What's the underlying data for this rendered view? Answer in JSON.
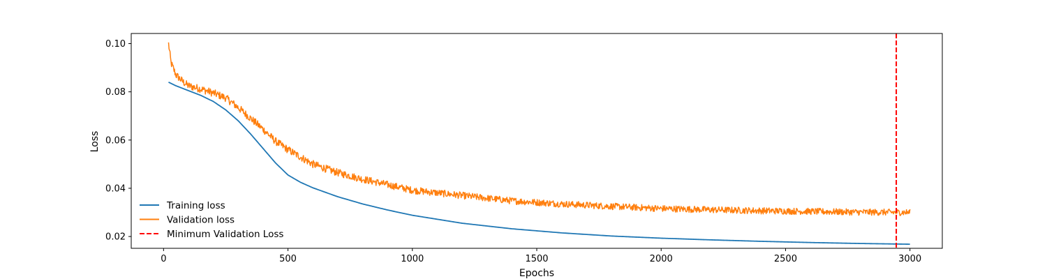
{
  "chart_data": {
    "type": "line",
    "title": "",
    "xlabel": "Epochs",
    "ylabel": "Loss",
    "xlim": [
      -130,
      3130
    ],
    "ylim": [
      0.0151,
      0.1042
    ],
    "xticks": [
      0,
      500,
      1000,
      1500,
      2000,
      2500,
      3000
    ],
    "xtick_labels": [
      "0",
      "500",
      "1000",
      "1500",
      "2000",
      "2500",
      "3000"
    ],
    "yticks": [
      0.02,
      0.04,
      0.06,
      0.08,
      0.1
    ],
    "ytick_labels": [
      "0.02",
      "0.04",
      "0.06",
      "0.08",
      "0.10"
    ],
    "grid": false,
    "legend": {
      "placement": "lower-left",
      "frameless": true
    },
    "series": [
      {
        "name": "Training loss",
        "color": "#1f77b4",
        "style": "solid",
        "x": [
          20,
          50,
          100,
          150,
          200,
          250,
          300,
          350,
          400,
          450,
          500,
          550,
          600,
          700,
          800,
          900,
          1000,
          1200,
          1400,
          1600,
          1800,
          2000,
          2200,
          2400,
          2600,
          2800,
          3000
        ],
        "y": [
          0.084,
          0.0825,
          0.0805,
          0.0785,
          0.076,
          0.0725,
          0.068,
          0.0625,
          0.0565,
          0.0505,
          0.0455,
          0.0425,
          0.0402,
          0.0365,
          0.0335,
          0.031,
          0.0288,
          0.0255,
          0.0232,
          0.0215,
          0.0202,
          0.0193,
          0.0186,
          0.018,
          0.0175,
          0.0171,
          0.0168
        ]
      },
      {
        "name": "Validation loss",
        "color": "#ff7f0e",
        "style": "solid",
        "noisy": true,
        "x": [
          20,
          30,
          50,
          80,
          100,
          150,
          200,
          250,
          300,
          350,
          400,
          450,
          500,
          550,
          600,
          650,
          700,
          800,
          900,
          1000,
          1200,
          1400,
          1600,
          1800,
          2000,
          2200,
          2400,
          2600,
          2800,
          3000
        ],
        "y": [
          0.1,
          0.092,
          0.087,
          0.084,
          0.0825,
          0.0812,
          0.0795,
          0.0775,
          0.0735,
          0.069,
          0.0645,
          0.0595,
          0.056,
          0.053,
          0.05,
          0.0482,
          0.0465,
          0.0438,
          0.0415,
          0.0392,
          0.037,
          0.0348,
          0.0335,
          0.0325,
          0.0316,
          0.0311,
          0.0307,
          0.0304,
          0.0301,
          0.03
        ]
      },
      {
        "name": "Minimum Validation Loss",
        "color": "#ff0000",
        "style": "dashed",
        "vline_x": 2945
      }
    ]
  }
}
